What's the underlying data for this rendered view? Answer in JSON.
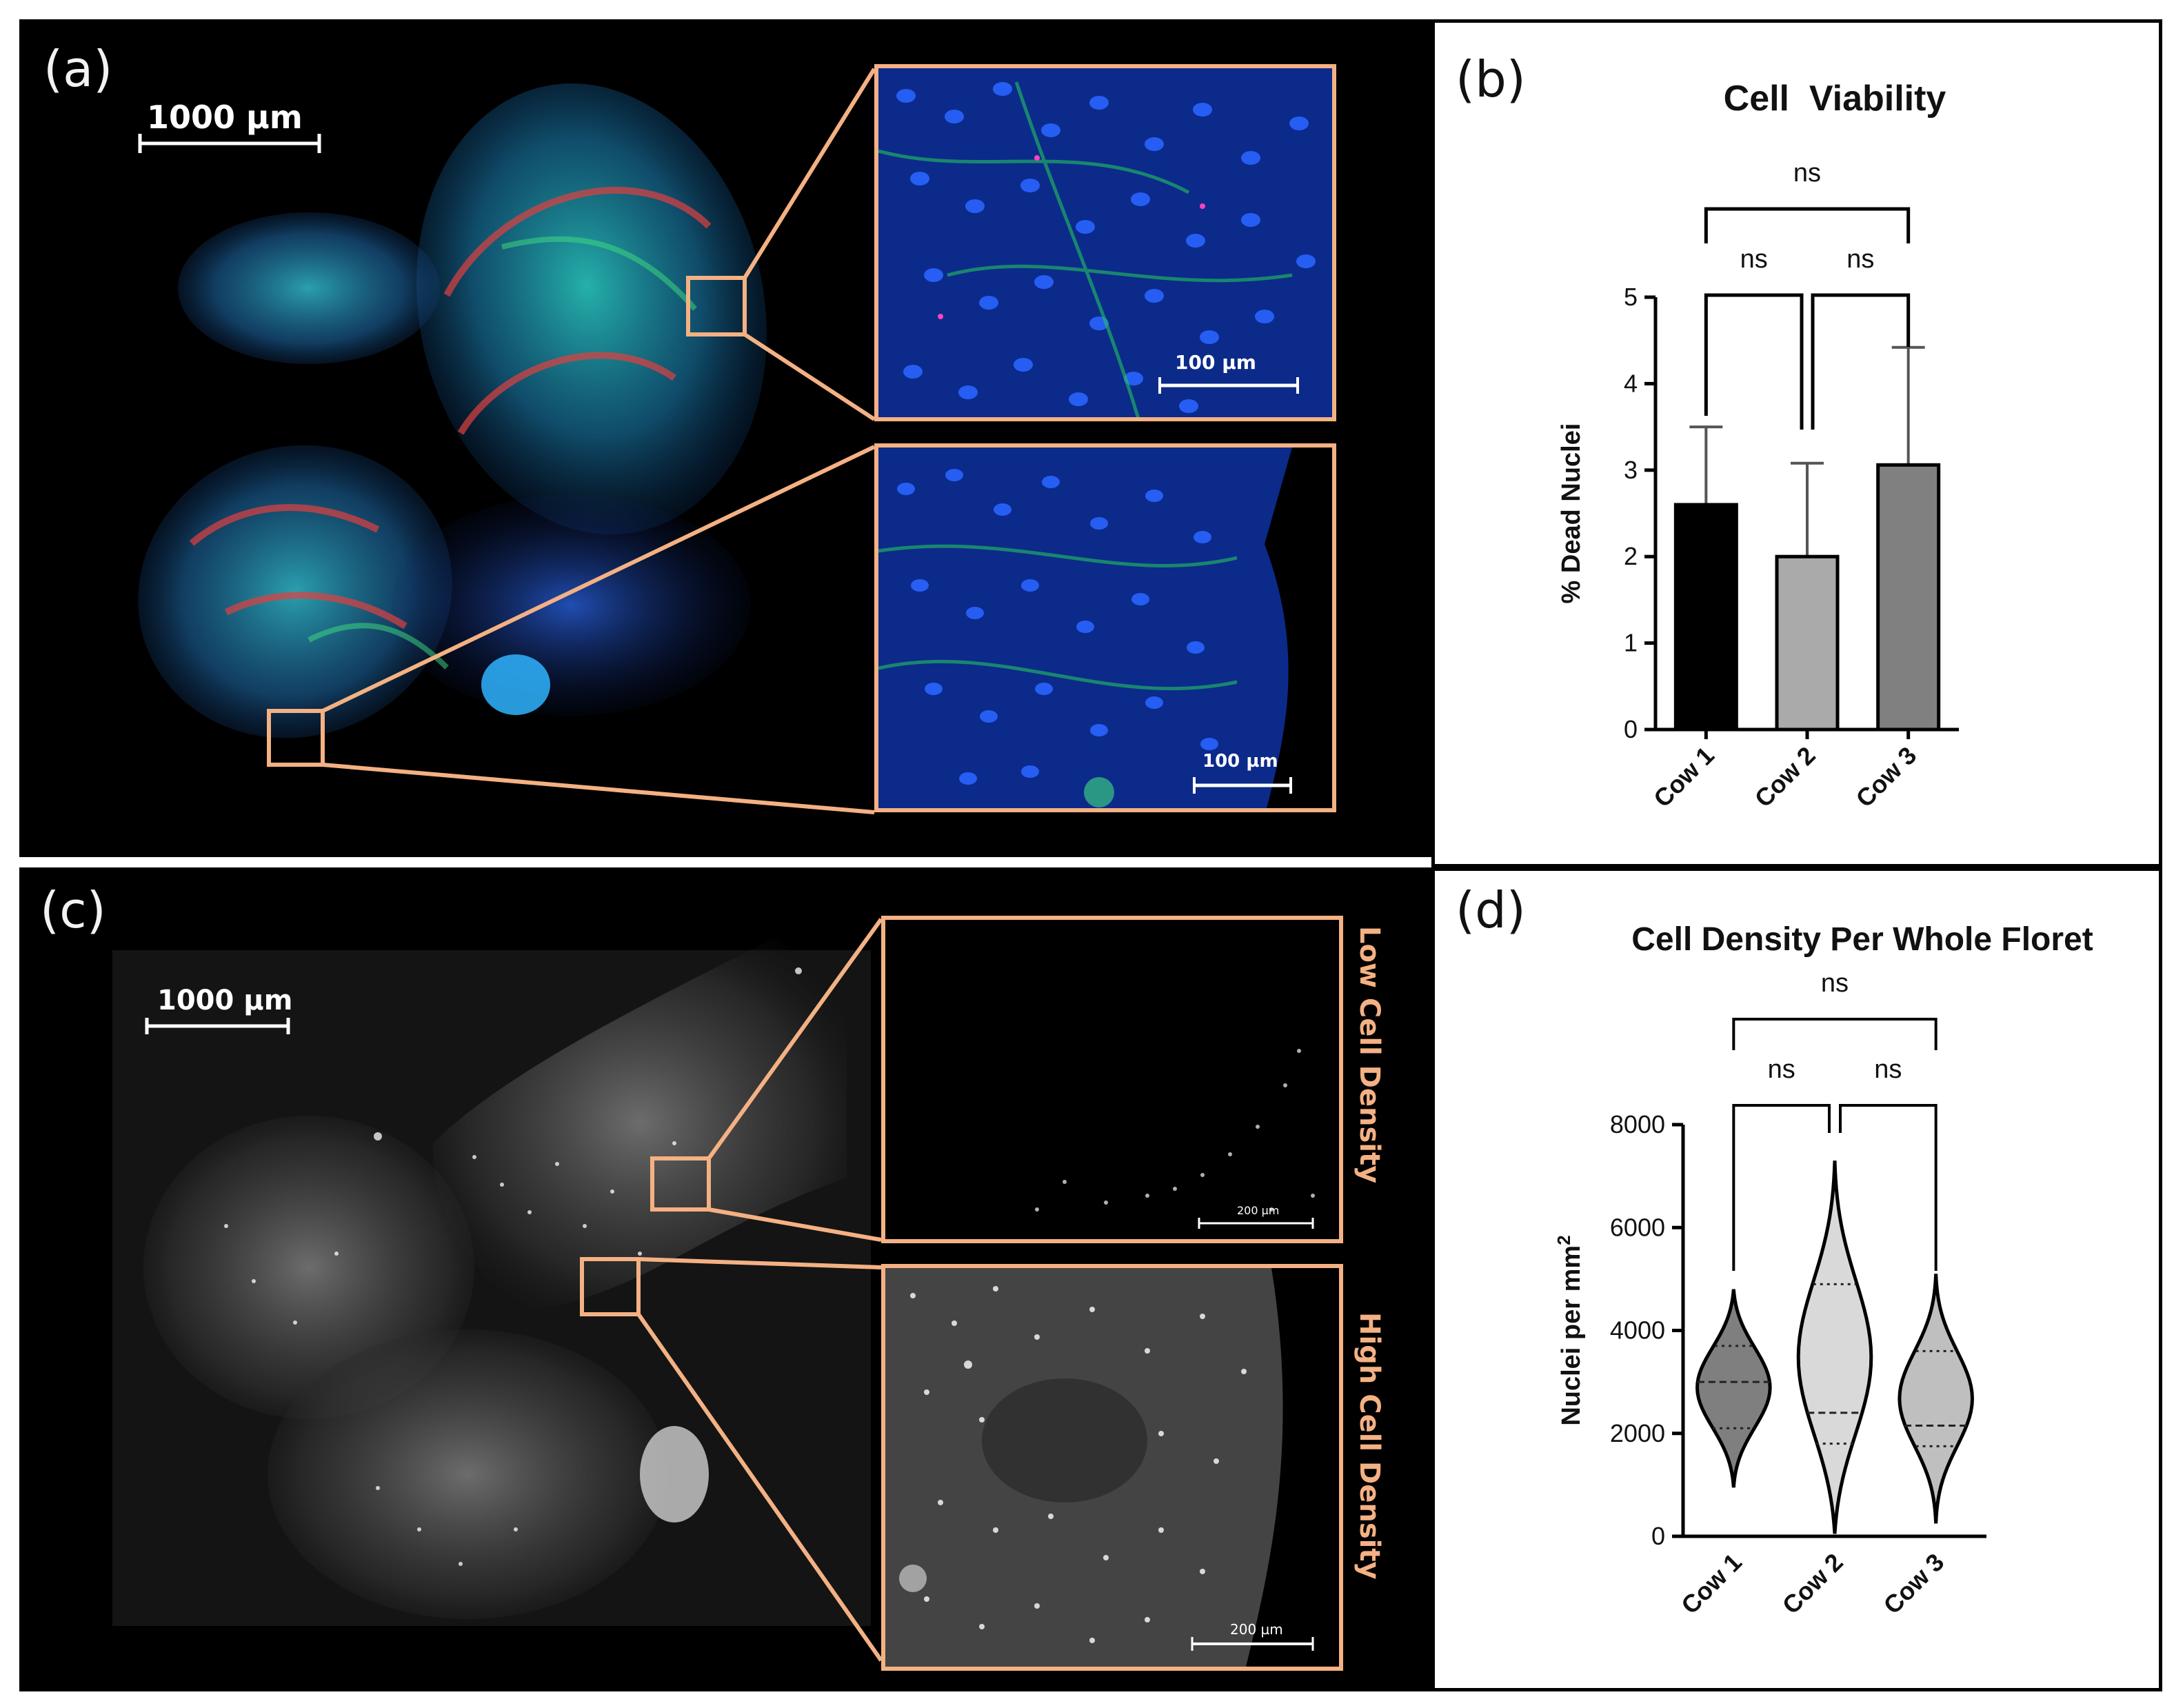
{
  "figure": {
    "panels": {
      "a": {
        "letter": "(a)",
        "scalebar_main": "1000 µm",
        "inset_top_scalebar": "100 µm",
        "inset_bottom_scalebar": "100 µm",
        "colors": {
          "nuclei": "#1e5cff",
          "actin": "#22c55e",
          "dead": "#ff2a2a",
          "roi": "#f4b183"
        }
      },
      "b": {
        "letter": "(b)"
      },
      "c": {
        "letter": "(c)",
        "scalebar_main": "1000 µm",
        "inset_top_scalebar": "200 µm",
        "inset_bottom_scalebar": "200 µm",
        "label_low": "Low Cell Density",
        "label_high": "High Cell Density"
      },
      "d": {
        "letter": "(d)"
      }
    }
  },
  "chart_data": [
    {
      "type": "bar",
      "title": "Cell  Viability",
      "xlabel": "",
      "ylabel": "% Dead Nuclei",
      "categories": [
        "Cow 1",
        "Cow 2",
        "Cow 3"
      ],
      "values": [
        2.6,
        2.0,
        3.06
      ],
      "error_upper": [
        3.5,
        3.08,
        4.42
      ],
      "bar_colors": [
        "#000000",
        "#aaaaaa",
        "#808080"
      ],
      "ylim": [
        0,
        5
      ],
      "yticks": [
        0,
        1,
        2,
        3,
        4,
        5
      ],
      "significance": [
        {
          "pair": [
            "Cow 1",
            "Cow 2"
          ],
          "label": "ns"
        },
        {
          "pair": [
            "Cow 2",
            "Cow 3"
          ],
          "label": "ns"
        },
        {
          "pair": [
            "Cow 1",
            "Cow 3"
          ],
          "label": "ns"
        }
      ]
    },
    {
      "type": "violin",
      "title": "Cell Density Per Whole Floret",
      "xlabel": "",
      "ylabel": "Nuclei per mm",
      "ylabel_superscript": "2",
      "categories": [
        "Cow 1",
        "Cow 2",
        "Cow 3"
      ],
      "range": [
        [
          950,
          4800
        ],
        [
          50,
          7300
        ],
        [
          250,
          5100
        ]
      ],
      "median": [
        3000,
        2400,
        2150
      ],
      "q1": [
        2100,
        1800,
        1750
      ],
      "q3": [
        3700,
        4900,
        3600
      ],
      "fill_colors": [
        "#7f7f7f",
        "#d9d9d9",
        "#bfbfbf"
      ],
      "ylim": [
        0,
        8000
      ],
      "yticks": [
        0,
        2000,
        4000,
        6000,
        8000
      ],
      "significance": [
        {
          "pair": [
            "Cow 1",
            "Cow 2"
          ],
          "label": "ns"
        },
        {
          "pair": [
            "Cow 2",
            "Cow 3"
          ],
          "label": "ns"
        },
        {
          "pair": [
            "Cow 1",
            "Cow 3"
          ],
          "label": "ns"
        }
      ]
    }
  ]
}
